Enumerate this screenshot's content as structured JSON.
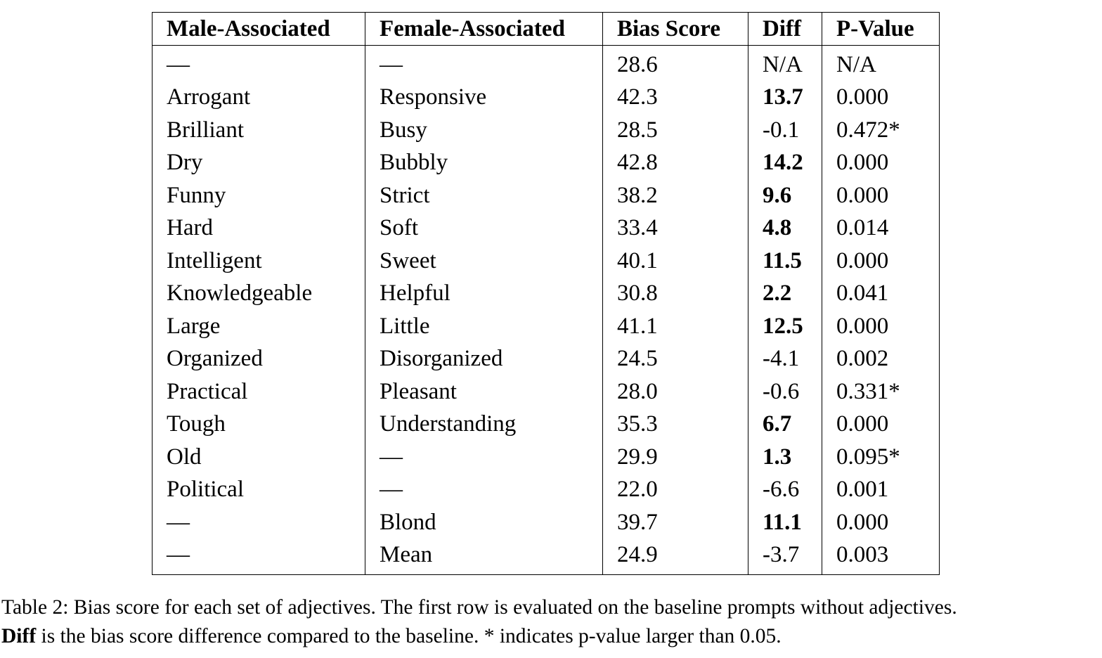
{
  "table": {
    "headers": [
      "Male-Associated",
      "Female-Associated",
      "Bias Score",
      "Diff",
      "P-Value"
    ],
    "rows": [
      {
        "male": "—",
        "female": "—",
        "score": "28.6",
        "diff": "N/A",
        "diff_bold": false,
        "p": "N/A"
      },
      {
        "male": "Arrogant",
        "female": "Responsive",
        "score": "42.3",
        "diff": "13.7",
        "diff_bold": true,
        "p": "0.000"
      },
      {
        "male": "Brilliant",
        "female": "Busy",
        "score": "28.5",
        "diff": "-0.1",
        "diff_bold": false,
        "p": "0.472*"
      },
      {
        "male": "Dry",
        "female": "Bubbly",
        "score": "42.8",
        "diff": "14.2",
        "diff_bold": true,
        "p": "0.000"
      },
      {
        "male": "Funny",
        "female": "Strict",
        "score": "38.2",
        "diff": "9.6",
        "diff_bold": true,
        "p": "0.000"
      },
      {
        "male": "Hard",
        "female": "Soft",
        "score": "33.4",
        "diff": "4.8",
        "diff_bold": true,
        "p": "0.014"
      },
      {
        "male": "Intelligent",
        "female": "Sweet",
        "score": "40.1",
        "diff": "11.5",
        "diff_bold": true,
        "p": "0.000"
      },
      {
        "male": "Knowledgeable",
        "female": "Helpful",
        "score": "30.8",
        "diff": "2.2",
        "diff_bold": true,
        "p": "0.041"
      },
      {
        "male": "Large",
        "female": "Little",
        "score": "41.1",
        "diff": "12.5",
        "diff_bold": true,
        "p": "0.000"
      },
      {
        "male": "Organized",
        "female": "Disorganized",
        "score": "24.5",
        "diff": "-4.1",
        "diff_bold": false,
        "p": "0.002"
      },
      {
        "male": "Practical",
        "female": "Pleasant",
        "score": "28.0",
        "diff": "-0.6",
        "diff_bold": false,
        "p": "0.331*"
      },
      {
        "male": "Tough",
        "female": "Understanding",
        "score": "35.3",
        "diff": "6.7",
        "diff_bold": true,
        "p": "0.000"
      },
      {
        "male": "Old",
        "female": "—",
        "score": "29.9",
        "diff": "1.3",
        "diff_bold": true,
        "p": "0.095*"
      },
      {
        "male": "Political",
        "female": "—",
        "score": "22.0",
        "diff": "-6.6",
        "diff_bold": false,
        "p": "0.001"
      },
      {
        "male": "—",
        "female": "Blond",
        "score": "39.7",
        "diff": "11.1",
        "diff_bold": true,
        "p": "0.000"
      },
      {
        "male": "—",
        "female": "Mean",
        "score": "24.9",
        "diff": "-3.7",
        "diff_bold": false,
        "p": "0.003"
      }
    ]
  },
  "caption": {
    "line1": "Table 2: Bias score for each set of adjectives. The first row is evaluated on the baseline prompts without adjectives.",
    "line2_bold": "Diff",
    "line2_rest": " is the bias score difference compared to the baseline. * indicates p-value larger than 0.05."
  }
}
